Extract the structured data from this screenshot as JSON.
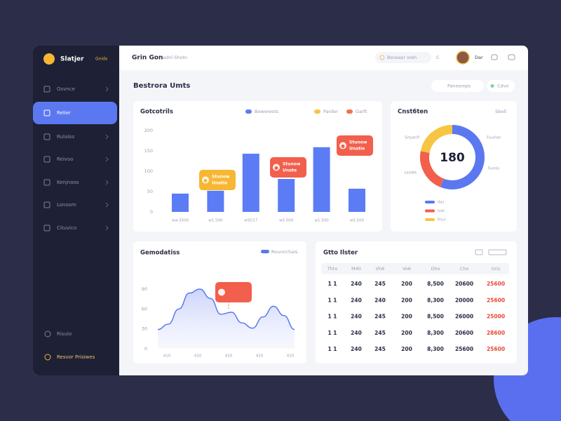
{
  "brand": {
    "name": "Slatjer",
    "tag": "Gnidx"
  },
  "sidebar": {
    "items": [
      "Osvnce",
      "Relier",
      "Rulalos",
      "Reivoo",
      "Kenjnoos",
      "Lonoom",
      "Cituvico"
    ],
    "active": 1,
    "footer": [
      "Risuio",
      "Resvor Prisiwes"
    ]
  },
  "header": {
    "title": "Grin Gon",
    "subtitle": "adnl Shotn",
    "search": "Bsneasr sreh",
    "badge": "C",
    "user": "Dar"
  },
  "page": {
    "title": "Bestrora Umts",
    "buttons": [
      "Panesrops",
      "Cdvo"
    ]
  },
  "bar_chart": {
    "type": "bar",
    "title": "Gotcotrils",
    "legend": [
      {
        "name": "Bowereots",
        "color": "#5b7cf5"
      },
      {
        "name": "Parder",
        "color": "#f7c544"
      },
      {
        "name": "Garft",
        "color": "#f2734c"
      }
    ],
    "categories": [
      "ww.3500",
      "w1.500",
      "wSD17",
      "wS 500",
      "w1.500",
      "wS.500"
    ],
    "values": [
      45,
      52,
      143,
      81,
      159,
      57
    ],
    "color": "#5b7cf5",
    "ylim": [
      0,
      200
    ],
    "yticks": [
      0,
      50,
      100,
      150,
      200
    ],
    "callouts": [
      {
        "lines": [
          "Stunow",
          "Unatio"
        ],
        "color": "#f7b733"
      },
      {
        "lines": [
          "Stunow",
          "Unate"
        ],
        "color": "#f25f4c"
      },
      {
        "lines": [
          "Stunow",
          "Unatie"
        ],
        "color": "#f25f4c"
      }
    ]
  },
  "donut_chart": {
    "type": "pie",
    "title": "Cnst6ten",
    "menu": "Sbell",
    "center": "180",
    "series": [
      {
        "name": "Ilas",
        "color": "#5b78f0",
        "values": [
          56
        ]
      },
      {
        "name": "Ivel",
        "color": "#f25f4c",
        "values": [
          22
        ]
      },
      {
        "name": "Frus",
        "color": "#f7c544",
        "values": [
          22
        ]
      }
    ],
    "labels": [
      "Srlyanfl",
      "Lesdle",
      "Fuurlan",
      "Fumis"
    ]
  },
  "line_chart": {
    "type": "line",
    "title": "Gemodatiss",
    "legend": "Rounnchais",
    "color": "#5b78f0",
    "values": [
      29,
      37,
      60,
      84,
      90,
      76,
      52,
      55,
      39,
      31,
      48,
      64,
      50,
      29
    ],
    "xlabels": [
      "410",
      "410",
      "410",
      "410",
      "410"
    ],
    "ylim": [
      0,
      90
    ],
    "yticks": [
      0,
      30,
      60,
      90
    ]
  },
  "table": {
    "title": "Gtto Ilster",
    "columns": [
      "Thto",
      "M40",
      "Vh6",
      "Vo6",
      "Dho",
      "Cho",
      "Uris"
    ],
    "rows": [
      [
        "1 1",
        "240",
        "245",
        "200",
        "8,500",
        "20600",
        "25600"
      ],
      [
        "1 1",
        "240",
        "240",
        "200",
        "8,300",
        "20000",
        "25600"
      ],
      [
        "1 1",
        "240",
        "245",
        "200",
        "8,500",
        "26000",
        "25000"
      ],
      [
        "1 1",
        "240",
        "245",
        "200",
        "8,300",
        "20600",
        "28600"
      ],
      [
        "1 1",
        "240",
        "245",
        "200",
        "8,300",
        "25600",
        "25600"
      ]
    ]
  }
}
